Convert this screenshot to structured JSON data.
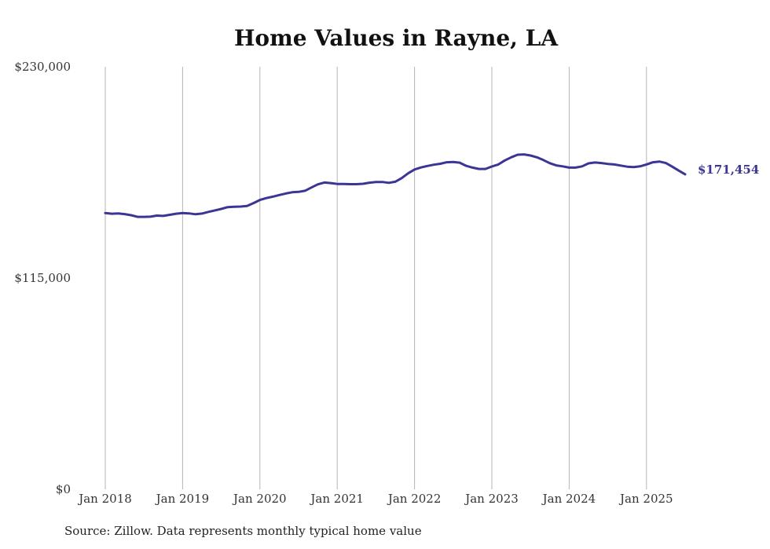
{
  "chart_data": {
    "type": "line",
    "title": "Home Values in Rayne, LA",
    "xlabel": "",
    "ylabel": "",
    "ylim": [
      0,
      230000
    ],
    "y_ticks": [
      {
        "value": 0,
        "label": "$0"
      },
      {
        "value": 115000,
        "label": "$115,000"
      },
      {
        "value": 230000,
        "label": "$230,000"
      }
    ],
    "x_ticks": [
      "Jan 2018",
      "Jan 2019",
      "Jan 2020",
      "Jan 2021",
      "Jan 2022",
      "Jan 2023",
      "Jan 2024",
      "Jan 2025"
    ],
    "grid": {
      "vertical": true,
      "horizontal": false
    },
    "line_color": "#3b3596",
    "x_start": "2018-01",
    "x": [
      "2018-01",
      "2018-02",
      "2018-03",
      "2018-04",
      "2018-05",
      "2018-06",
      "2018-07",
      "2018-08",
      "2018-09",
      "2018-10",
      "2018-11",
      "2018-12",
      "2019-01",
      "2019-02",
      "2019-03",
      "2019-04",
      "2019-05",
      "2019-06",
      "2019-07",
      "2019-08",
      "2019-09",
      "2019-10",
      "2019-11",
      "2019-12",
      "2020-01",
      "2020-02",
      "2020-03",
      "2020-04",
      "2020-05",
      "2020-06",
      "2020-07",
      "2020-08",
      "2020-09",
      "2020-10",
      "2020-11",
      "2020-12",
      "2021-01",
      "2021-02",
      "2021-03",
      "2021-04",
      "2021-05",
      "2021-06",
      "2021-07",
      "2021-08",
      "2021-09",
      "2021-10",
      "2021-11",
      "2021-12",
      "2022-01",
      "2022-02",
      "2022-03",
      "2022-04",
      "2022-05",
      "2022-06",
      "2022-07",
      "2022-08",
      "2022-09",
      "2022-10",
      "2022-11",
      "2022-12",
      "2023-01",
      "2023-02",
      "2023-03",
      "2023-04",
      "2023-05",
      "2023-06",
      "2023-07",
      "2023-08",
      "2023-09",
      "2023-10",
      "2023-11",
      "2023-12",
      "2024-01",
      "2024-02",
      "2024-03",
      "2024-04",
      "2024-05",
      "2024-06",
      "2024-07",
      "2024-08",
      "2024-09",
      "2024-10",
      "2024-11",
      "2024-12",
      "2025-01",
      "2025-02",
      "2025-03",
      "2025-04",
      "2025-05",
      "2025-06",
      "2025-07"
    ],
    "series": [
      {
        "values": [
          150400,
          150000,
          150200,
          149800,
          149200,
          148300,
          148300,
          148400,
          149000,
          148800,
          149400,
          150000,
          150400,
          150200,
          149700,
          150100,
          151000,
          151800,
          152600,
          153600,
          153800,
          153900,
          154200,
          155800,
          157500,
          158500,
          159300,
          160200,
          161000,
          161700,
          161900,
          162500,
          164300,
          166000,
          167000,
          166700,
          166200,
          166200,
          166100,
          166100,
          166300,
          166900,
          167300,
          167300,
          166800,
          167400,
          169400,
          172000,
          174100,
          175200,
          176000,
          176700,
          177200,
          178000,
          178200,
          177800,
          176100,
          175100,
          174400,
          174400,
          175700,
          176800,
          179000,
          180700,
          182100,
          182300,
          181700,
          180700,
          179200,
          177500,
          176300,
          175800,
          175100,
          175100,
          175800,
          177400,
          177900,
          177600,
          177100,
          176800,
          176200,
          175600,
          175400,
          175800,
          176800,
          178000,
          178400,
          177600,
          175600,
          173500,
          171454
        ]
      }
    ],
    "end_label": "$171,454"
  },
  "source_text": "Source: Zillow. Data represents monthly typical home value"
}
